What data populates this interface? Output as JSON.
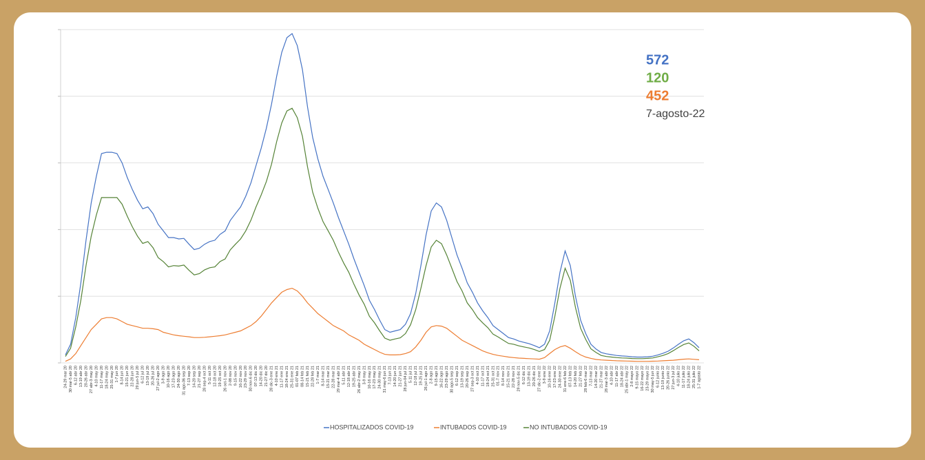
{
  "chart_data": {
    "type": "line",
    "categories": [
      "24-29 mar 20",
      "30 mar-5 abr 20",
      "6-12 abr 20",
      "13-19 abr 20",
      "20-26 abr 20",
      "27 abr-3 may 20",
      "4-10 may 20",
      "11-17 may 20",
      "18-24 may 20",
      "25-31 may 20",
      "1-7 jun 20",
      "8-14 jun 20",
      "15-21 jun 20",
      "22-28 jun 20",
      "29 jun-5 jul 20",
      "6-12 jul 20",
      "13-19 jul 20",
      "20-26 jul 20",
      "27 jul-2 ago 20",
      "3-9 ago 20",
      "10-16 ago 20",
      "17-23 ago 20",
      "24-30 ago 20",
      "31 ago-06 sep 20",
      "7-13 sep 20",
      "14-20 sep 20",
      "21-27 sep 20",
      "28 sep-4 oct 20",
      "5-11 oct 20",
      "12-18 oct 20",
      "19-25 oct 20",
      "26 oct-1 nov 20",
      "2-08 nov 20",
      "9-15 nov 20",
      "16-22 nov 20",
      "23-29 nov 20",
      "30 nov-6 dic 20",
      "07-13 dic 20",
      "14-20 dic 20",
      "21-27 dic 20",
      "28 dic-3 ene 21",
      "4-10 ene 21",
      "11-17 ene 21",
      "18-24 ene 21",
      "25-31 ene 21",
      "01-07 feb 21",
      "08-14 feb 21",
      "15-21 feb 21",
      "22-28 feb 21",
      "1-7 mar 21",
      "8-14 mar 21",
      "15-21 mar 21",
      "22-28 mar 21",
      "29 mar-4 abr 21",
      "5-11 abr 21",
      "12-18 abr 21",
      "19-25 abr 21",
      "26 abr-2 may 21",
      "3-9 may 21",
      "10-16 may 21",
      "17-23 may 21",
      "24-30 may 21",
      "31 may-6 jun 21",
      "7-13 jun 21",
      "14-20 jun 21",
      "21-27 jun 21",
      "28 jun-04 jul 21",
      "5-11 jul 21",
      "12-18 jul 21",
      "19-25 jul 21",
      "26 jul-1 ago 21",
      "2-8 ago 21",
      "9-15 ago 21",
      "16-22 ago 21",
      "23-29 ago 21",
      "30 ago-5 sep 21",
      "6-12 sep 21",
      "13-19 sep 21",
      "20-26 sep 21",
      "27 sep-3 oct 21",
      "4-10 oct 21",
      "11-17 oct 21",
      "18-24 oct 21",
      "25-31 oct 21",
      "01-7 nov 21",
      "8-14 nov 21",
      "15-21 nov 21",
      "22-28 nov 21",
      "29 nov-5 dic 21",
      "6-12 dic 21",
      "13-19 dic 21",
      "20-26 dic 21",
      "27 dic-2 ene 22",
      "3-9 ene 22",
      "10-16 ene 22",
      "17-23 ene 22",
      "24-30 ene 22",
      "31 ene-6 feb 22",
      "07-13 feb 22",
      "14-20 feb 22",
      "21-27 feb 22",
      "28 feb-6 mar 22",
      "7-13 mar 22",
      "14-20 mar 22",
      "21-27 mar 22",
      "28 mar-3 abr 22",
      "4-10 abr 22",
      "11-17 abr 22",
      "18-24 abr 22",
      "25 abr-1 may 22",
      "2-8 mayo 22",
      "9-15 mayo 22",
      "16-22 mayo 22",
      "23-29 mayo 22",
      "30 may-5 jun 22",
      "6-12 junio 22",
      "13-19 junio 22",
      "20-26 junio 22",
      "27 jun-3 jul 22",
      "4-10 julio 22",
      "11-17 julio 22",
      "18-24 julio 22",
      "25-31 julio 22",
      "1-7 agosto 22"
    ],
    "series": [
      {
        "name": "HOSPITALIZADOS COVID-19",
        "color": "#4472c4",
        "values": [
          300,
          700,
          1700,
          3000,
          4600,
          6000,
          7000,
          7850,
          7900,
          7900,
          7850,
          7500,
          6950,
          6500,
          6100,
          5780,
          5850,
          5600,
          5200,
          4950,
          4700,
          4700,
          4650,
          4670,
          4450,
          4250,
          4300,
          4450,
          4550,
          4600,
          4820,
          4950,
          5340,
          5600,
          5850,
          6250,
          6750,
          7400,
          8050,
          8800,
          9700,
          10750,
          11650,
          12200,
          12350,
          11900,
          11000,
          9600,
          8450,
          7650,
          7000,
          6500,
          6000,
          5450,
          4950,
          4450,
          3900,
          3400,
          2900,
          2350,
          2000,
          1600,
          1250,
          1150,
          1200,
          1250,
          1450,
          1850,
          2600,
          3650,
          4800,
          5700,
          6000,
          5850,
          5350,
          4700,
          4050,
          3550,
          3000,
          2650,
          2250,
          1950,
          1700,
          1400,
          1250,
          1100,
          950,
          900,
          820,
          770,
          720,
          650,
          570,
          700,
          1200,
          2250,
          3400,
          4200,
          3650,
          2500,
          1600,
          1100,
          700,
          520,
          390,
          340,
          310,
          280,
          260,
          250,
          230,
          220,
          220,
          230,
          250,
          300,
          360,
          440,
          560,
          700,
          830,
          900,
          760,
          572
        ]
      },
      {
        "name": "INTUBADOS COVID-19",
        "color": "#ed7d31",
        "values": [
          60,
          150,
          350,
          650,
          950,
          1250,
          1450,
          1650,
          1700,
          1700,
          1650,
          1550,
          1450,
          1400,
          1350,
          1300,
          1300,
          1280,
          1250,
          1150,
          1100,
          1050,
          1020,
          1000,
          980,
          950,
          950,
          960,
          980,
          1000,
          1020,
          1050,
          1100,
          1150,
          1200,
          1300,
          1400,
          1550,
          1750,
          2000,
          2250,
          2450,
          2650,
          2750,
          2800,
          2700,
          2500,
          2250,
          2050,
          1850,
          1700,
          1550,
          1400,
          1300,
          1200,
          1050,
          950,
          850,
          700,
          600,
          500,
          400,
          320,
          300,
          300,
          310,
          350,
          420,
          600,
          850,
          1150,
          1350,
          1400,
          1380,
          1300,
          1150,
          1000,
          850,
          750,
          650,
          550,
          450,
          380,
          320,
          280,
          250,
          220,
          200,
          180,
          170,
          160,
          150,
          140,
          200,
          350,
          500,
          600,
          650,
          550,
          420,
          300,
          220,
          170,
          130,
          110,
          100,
          90,
          80,
          75,
          70,
          65,
          60,
          60,
          60,
          65,
          70,
          80,
          90,
          100,
          120,
          140,
          150,
          135,
          120
        ]
      },
      {
        "name": "NO INTUBADOS COVID-19",
        "color": "#548235",
        "values": [
          240,
          550,
          1350,
          2350,
          3650,
          4750,
          5550,
          6200,
          6200,
          6200,
          6200,
          5950,
          5500,
          5100,
          4750,
          4480,
          4550,
          4320,
          3950,
          3800,
          3600,
          3650,
          3630,
          3670,
          3470,
          3300,
          3350,
          3490,
          3570,
          3600,
          3800,
          3900,
          4240,
          4450,
          4650,
          4950,
          5350,
          5850,
          6300,
          6800,
          7450,
          8300,
          9000,
          9450,
          9550,
          9200,
          8500,
          7350,
          6400,
          5800,
          5300,
          4950,
          4600,
          4150,
          3750,
          3400,
          2950,
          2550,
          2200,
          1750,
          1500,
          1200,
          930,
          850,
          900,
          940,
          1100,
          1430,
          2000,
          2800,
          3650,
          4350,
          4600,
          4470,
          4050,
          3550,
          3050,
          2700,
          2250,
          2000,
          1700,
          1500,
          1320,
          1080,
          970,
          850,
          730,
          700,
          640,
          600,
          560,
          500,
          430,
          500,
          850,
          1750,
          2800,
          3550,
          3100,
          2080,
          1300,
          880,
          530,
          390,
          280,
          240,
          220,
          200,
          185,
          180,
          165,
          160,
          160,
          170,
          185,
          230,
          280,
          350,
          460,
          580,
          690,
          750,
          625,
          452
        ]
      }
    ],
    "annotation_colors": [
      "#4472c4",
      "#70ad47",
      "#ed7d31"
    ],
    "date_label": "7-agosto-22",
    "ylim": [
      0,
      12500
    ],
    "yticks": [
      0,
      2500,
      5000,
      7500,
      10000,
      12500
    ],
    "grid": true,
    "legend": "bottom"
  }
}
